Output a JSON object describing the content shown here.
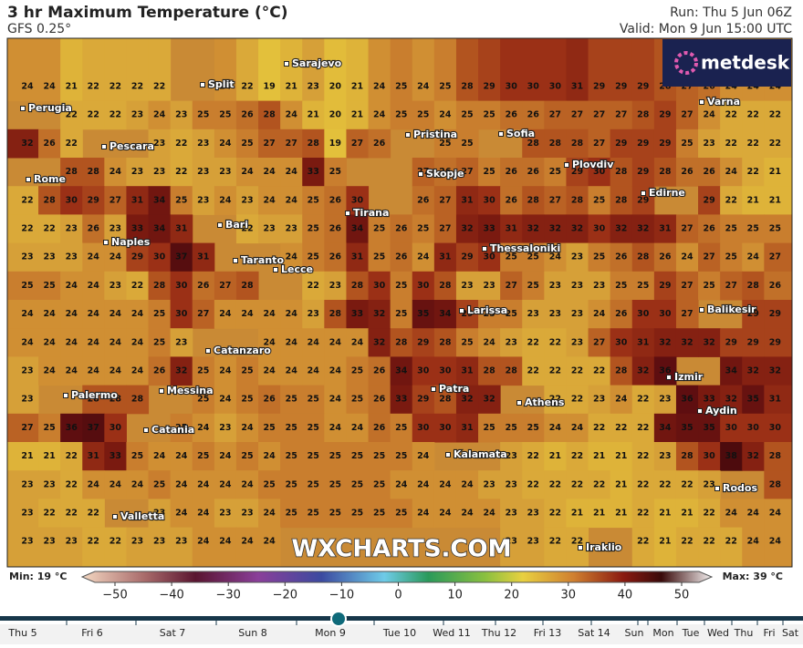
{
  "header": {
    "title": "3 hr Maximum Temperature (°C)",
    "model": "GFS 0.25°",
    "run": "Run: Thu 5 Jun 06Z",
    "valid": "Valid: Mon 9 Jun 15:00 UTC"
  },
  "logo": "metdesk",
  "watermark": "WXCHARTS.COM",
  "grid": {
    "rows": [
      [
        24,
        24,
        21,
        22,
        22,
        22,
        22,
        null,
        null,
        24,
        22,
        19,
        21,
        23,
        20,
        21,
        24,
        25,
        24,
        25,
        28,
        29,
        30,
        30,
        30,
        31,
        29,
        29,
        29,
        28,
        27,
        26,
        24,
        24,
        24
      ],
      [
        null,
        null,
        22,
        22,
        22,
        23,
        24,
        23,
        25,
        25,
        26,
        28,
        24,
        21,
        20,
        21,
        24,
        25,
        25,
        24,
        25,
        25,
        26,
        26,
        27,
        27,
        27,
        27,
        28,
        29,
        27,
        24,
        22,
        22,
        22
      ],
      [
        32,
        26,
        22,
        null,
        null,
        null,
        23,
        22,
        23,
        24,
        25,
        27,
        27,
        28,
        19,
        27,
        26,
        null,
        null,
        25,
        25,
        null,
        null,
        28,
        28,
        28,
        27,
        29,
        29,
        29,
        25,
        23,
        22,
        22,
        22
      ],
      [
        null,
        null,
        28,
        28,
        24,
        23,
        23,
        22,
        23,
        23,
        24,
        24,
        24,
        33,
        25,
        null,
        null,
        null,
        27,
        26,
        27,
        25,
        26,
        26,
        25,
        29,
        30,
        28,
        29,
        28,
        26,
        26,
        24,
        22,
        21
      ],
      [
        22,
        28,
        30,
        29,
        27,
        31,
        34,
        25,
        23,
        24,
        23,
        24,
        24,
        25,
        26,
        30,
        null,
        null,
        26,
        27,
        31,
        30,
        26,
        28,
        27,
        28,
        25,
        28,
        29,
        null,
        null,
        29,
        22,
        21,
        21
      ],
      [
        22,
        22,
        23,
        26,
        23,
        33,
        34,
        31,
        null,
        null,
        22,
        23,
        23,
        25,
        26,
        34,
        25,
        26,
        25,
        27,
        32,
        33,
        31,
        32,
        32,
        32,
        30,
        32,
        32,
        31,
        27,
        26,
        25,
        25,
        25
      ],
      [
        23,
        23,
        23,
        24,
        24,
        29,
        30,
        37,
        31,
        null,
        null,
        null,
        24,
        25,
        26,
        31,
        25,
        26,
        24,
        31,
        29,
        30,
        25,
        25,
        24,
        23,
        25,
        26,
        28,
        26,
        24,
        27,
        25,
        24,
        27
      ],
      [
        25,
        25,
        24,
        24,
        23,
        22,
        28,
        30,
        26,
        27,
        28,
        null,
        null,
        22,
        23,
        28,
        30,
        25,
        30,
        28,
        23,
        23,
        27,
        25,
        23,
        23,
        23,
        25,
        25,
        29,
        27,
        25,
        27,
        28,
        26
      ],
      [
        24,
        24,
        24,
        24,
        24,
        24,
        25,
        30,
        27,
        24,
        24,
        24,
        24,
        23,
        28,
        33,
        32,
        25,
        35,
        34,
        29,
        25,
        25,
        23,
        23,
        23,
        24,
        26,
        30,
        30,
        27,
        null,
        null,
        29,
        29
      ],
      [
        24,
        24,
        24,
        24,
        24,
        24,
        25,
        23,
        null,
        null,
        null,
        24,
        24,
        24,
        24,
        24,
        32,
        28,
        29,
        28,
        25,
        24,
        23,
        22,
        22,
        23,
        27,
        30,
        31,
        32,
        32,
        32,
        29,
        29,
        29
      ],
      [
        23,
        24,
        24,
        24,
        24,
        24,
        26,
        32,
        25,
        24,
        25,
        24,
        24,
        24,
        24,
        25,
        26,
        34,
        30,
        30,
        31,
        28,
        28,
        22,
        22,
        22,
        22,
        28,
        32,
        36,
        null,
        null,
        34,
        32,
        32
      ],
      [
        23,
        null,
        null,
        28,
        28,
        28,
        null,
        null,
        25,
        24,
        25,
        26,
        25,
        25,
        24,
        25,
        26,
        33,
        29,
        28,
        32,
        32,
        null,
        null,
        22,
        22,
        23,
        24,
        22,
        23,
        36,
        33,
        32,
        35,
        31
      ],
      [
        27,
        25,
        36,
        37,
        30,
        null,
        null,
        25,
        24,
        23,
        24,
        25,
        25,
        25,
        24,
        24,
        26,
        25,
        30,
        30,
        31,
        25,
        25,
        25,
        24,
        24,
        22,
        22,
        22,
        34,
        35,
        35,
        30,
        30,
        30
      ],
      [
        21,
        21,
        22,
        31,
        33,
        25,
        24,
        24,
        25,
        24,
        25,
        24,
        25,
        25,
        25,
        25,
        25,
        25,
        24,
        null,
        null,
        null,
        23,
        22,
        21,
        22,
        21,
        21,
        22,
        23,
        28,
        30,
        38,
        32,
        28
      ],
      [
        23,
        23,
        22,
        24,
        24,
        24,
        25,
        24,
        24,
        24,
        24,
        25,
        25,
        25,
        25,
        25,
        25,
        24,
        24,
        24,
        24,
        23,
        23,
        22,
        22,
        22,
        22,
        21,
        22,
        22,
        22,
        23,
        null,
        null,
        28
      ],
      [
        23,
        22,
        22,
        22,
        null,
        null,
        23,
        24,
        24,
        23,
        23,
        24,
        25,
        25,
        25,
        25,
        25,
        25,
        24,
        24,
        24,
        24,
        23,
        23,
        22,
        21,
        21,
        21,
        22,
        21,
        21,
        22,
        24,
        24,
        24
      ],
      [
        23,
        23,
        23,
        22,
        22,
        23,
        23,
        23,
        24,
        24,
        24,
        24,
        null,
        null,
        null,
        null,
        null,
        null,
        null,
        null,
        null,
        null,
        23,
        23,
        22,
        22,
        null,
        null,
        22,
        21,
        22,
        22,
        22,
        24,
        24
      ]
    ]
  },
  "cities": [
    "Sarajevo",
    "Split",
    "Perugia",
    "Varna",
    "Pristina",
    "Sofia",
    "Pescara",
    "Rome",
    "Plovdiv",
    "Skopje",
    "Edirne",
    "Tirana",
    "Bari",
    "Naples",
    "Thessaloniki",
    "Taranto",
    "Lecce",
    "Larissa",
    "Balikesir",
    "Catanzaro",
    "Izmir",
    "Palermo",
    "Messina",
    "Athens",
    "Aydin",
    "Patra",
    "Catania",
    "Kalamata",
    "Rodos",
    "Valletta",
    "Iraklio"
  ],
  "colorbar": {
    "min_label": "Min: 19 °C",
    "max_label": "Max: 39 °C",
    "ticks": [
      {
        "value": -50,
        "label": "−50"
      },
      {
        "value": -40,
        "label": "−40"
      },
      {
        "value": -30,
        "label": "−30"
      },
      {
        "value": -20,
        "label": "−20"
      },
      {
        "value": -10,
        "label": "−10"
      },
      0,
      10,
      20,
      30,
      40,
      50
    ]
  },
  "timeline": {
    "days": [
      "Thu 5",
      "Fri 6",
      "Sat 7",
      "Sun 8",
      "Mon 9",
      "Tue 10",
      "Wed 11",
      "Thu 12",
      "Fri 13",
      "Sat 14",
      "Sun",
      "Mon",
      "Tue",
      "Wed",
      "Thu",
      "Fri",
      "Sat"
    ]
  }
}
